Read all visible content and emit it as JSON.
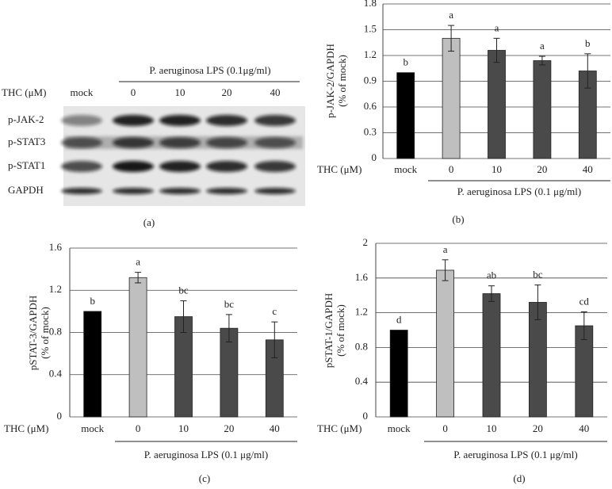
{
  "blot": {
    "group_label": "P. aeruginosa LPS (0.1μg/ml)",
    "treatment_label": "THC (μM)",
    "lanes": [
      "mock",
      "0",
      "10",
      "20",
      "40"
    ],
    "rows": [
      "p-JAK-2",
      "p-STAT3",
      "p-STAT1",
      "GAPDH"
    ],
    "panel_label": "(a)"
  },
  "chart_data": [
    {
      "type": "bar",
      "y_label": [
        "p-JAK-2/GAPDH",
        "(% of mock)"
      ],
      "x_label": "THC (μM)",
      "group_label": "P. aeruginosa LPS (0.1 μg/ml)",
      "panel_label": "(b)",
      "categories": [
        "mock",
        "0",
        "10",
        "20",
        "40"
      ],
      "series": [
        {
          "values": [
            1.0,
            1.4,
            1.26,
            1.14,
            1.02
          ],
          "errors": [
            0,
            0.15,
            0.14,
            0.05,
            0.2
          ],
          "colors": [
            "#000000",
            "#bfbfbf",
            "#4a4a4a",
            "#4a4a4a",
            "#4a4a4a"
          ]
        }
      ],
      "annotations": [
        "b",
        "a",
        "a",
        "a",
        "b"
      ],
      "ylim": [
        0,
        1.8
      ],
      "yticks": [
        0,
        0.3,
        0.6,
        0.9,
        1.2,
        1.5,
        1.8
      ],
      "grid": true
    },
    {
      "type": "bar",
      "y_label": [
        "pSTAT-3/GAPDH",
        "(% of mock)"
      ],
      "x_label": "THC (μM)",
      "group_label": "P. aeruginosa LPS (0.1 μg/ml)",
      "panel_label": "(c)",
      "categories": [
        "mock",
        "0",
        "10",
        "20",
        "40"
      ],
      "series": [
        {
          "values": [
            1.0,
            1.32,
            0.95,
            0.84,
            0.73
          ],
          "errors": [
            0,
            0.05,
            0.15,
            0.13,
            0.17
          ],
          "colors": [
            "#000000",
            "#bfbfbf",
            "#4a4a4a",
            "#4a4a4a",
            "#4a4a4a"
          ]
        }
      ],
      "annotations": [
        "b",
        "a",
        "bc",
        "bc",
        "c"
      ],
      "ylim": [
        0,
        1.6
      ],
      "yticks": [
        0,
        0.4,
        0.8,
        1.2,
        1.6
      ],
      "grid": true
    },
    {
      "type": "bar",
      "y_label": [
        "pSTAT-1/GAPDH",
        "(% of mock)"
      ],
      "x_label": "THC (μM)",
      "group_label": "P. aeruginosa LPS (0.1 μg/ml)",
      "panel_label": "(d)",
      "categories": [
        "mock",
        "0",
        "10",
        "20",
        "40"
      ],
      "series": [
        {
          "values": [
            1.0,
            1.69,
            1.42,
            1.32,
            1.05
          ],
          "errors": [
            0,
            0.12,
            0.09,
            0.2,
            0.16
          ],
          "colors": [
            "#000000",
            "#bfbfbf",
            "#4a4a4a",
            "#4a4a4a",
            "#4a4a4a"
          ]
        }
      ],
      "annotations": [
        "d",
        "a",
        "ab",
        "bc",
        "cd"
      ],
      "ylim": [
        0,
        2
      ],
      "yticks": [
        0,
        0.4,
        0.8,
        1.2,
        1.6,
        2
      ],
      "grid": true
    }
  ]
}
